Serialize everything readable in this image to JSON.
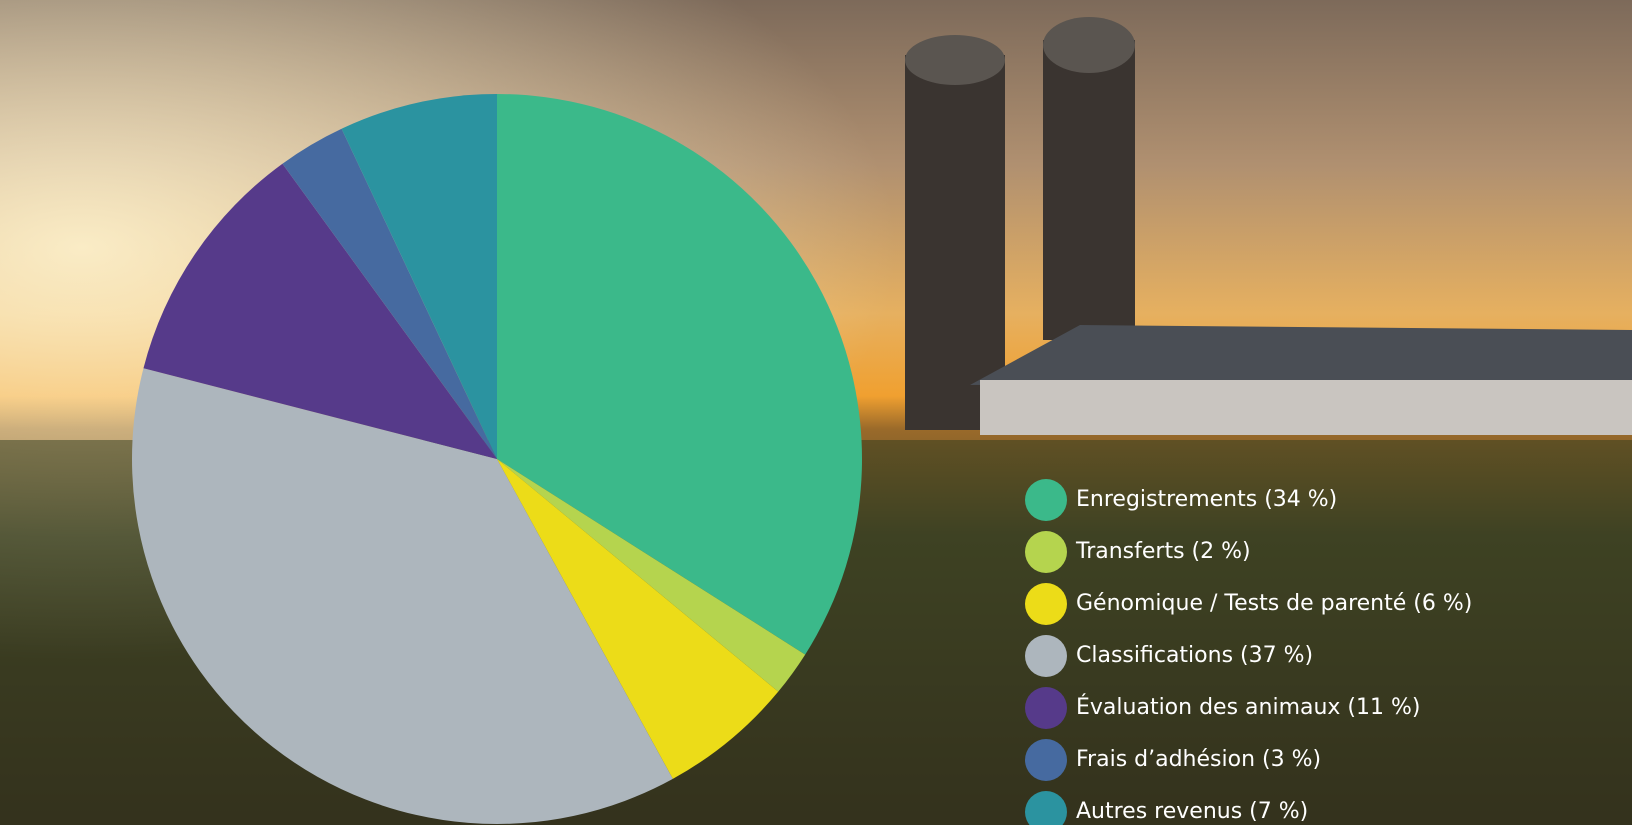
{
  "chart_data": {
    "type": "pie",
    "categories": [
      "Enregistrements (34 %)",
      "Transferts (2 %)",
      "Génomique / Tests de parenté (6 %)",
      "Classifications (37 %)",
      "Évaluation des animaux (11 %)",
      "Frais d’adhésion (3 %)",
      "Autres revenus (7 %)"
    ],
    "values": [
      34,
      2,
      6,
      37,
      11,
      3,
      7
    ],
    "colors": [
      "#3bb98a",
      "#b5d44e",
      "#ecdc18",
      "#adb6bd",
      "#563a8a",
      "#466aa0",
      "#2b93a0"
    ],
    "legend": "right"
  }
}
